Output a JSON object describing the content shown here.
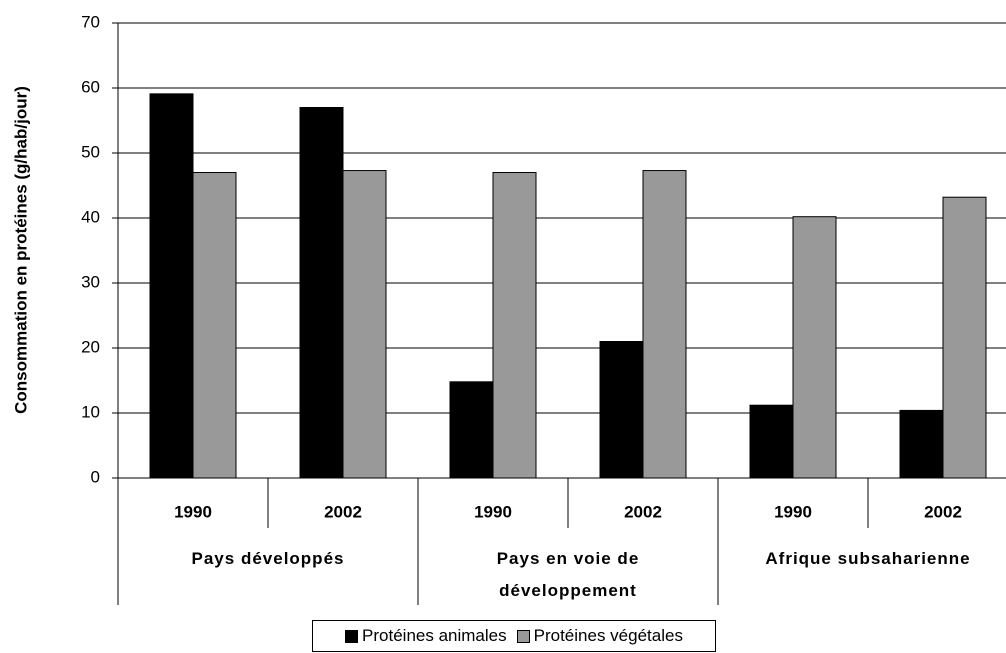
{
  "chart_data": {
    "type": "bar",
    "y_label": "Consommation en protéines (g/hab/jour)",
    "groups": [
      {
        "name": "Pays développés",
        "categories": [
          "1990",
          "2002"
        ]
      },
      {
        "name": "Pays en voie de développement",
        "categories": [
          "1990",
          "2002"
        ]
      },
      {
        "name": "Afrique subsaharienne",
        "categories": [
          "1990",
          "2002"
        ]
      }
    ],
    "series": [
      {
        "name": "Protéines animales",
        "color": "#000000",
        "values": [
          59.1,
          57,
          14.8,
          21,
          11.2,
          10.4
        ]
      },
      {
        "name": "Protéines végétales",
        "color": "#999999",
        "values": [
          47,
          47.3,
          47,
          47.3,
          40.2,
          43.2
        ]
      }
    ],
    "ylim": [
      0,
      70
    ],
    "yticks": [
      0,
      10,
      20,
      30,
      40,
      50,
      60,
      70
    ],
    "grid": true,
    "legend": "bottom"
  }
}
